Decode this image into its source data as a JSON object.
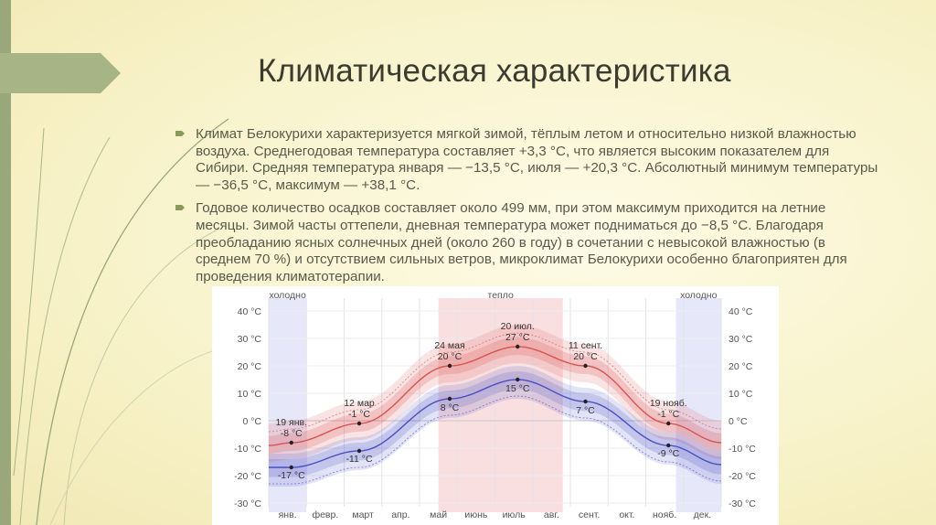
{
  "slide": {
    "title": "Климатическая характеристика",
    "paragraphs": [
      "Климат Белокурихи характеризуется мягкой зимой, тёплым летом и относительно низкой влажностью воздуха. Среднегодовая температура составляет +3,3 °C, что является высоким показателем для Сибири. Средняя температура января — −13,5 °C, июля — +20,3 °C. Абсолютный минимум температуры — −36,5 °C, максимум — +38,1 °C.",
      "Годовое количество осадков составляет около 499 мм, при этом максимум приходится на летние месяцы. Зимой часты оттепели, дневная температура может подниматься до −8,5 °C. Благодаря преобладанию ясных солнечных дней (около 260 в году) в сочетании с невысокой влажностью (в среднем 70 %) и отсутствием сильных ветров, микроклимат Белокурихи особенно благоприятен для проведения климатотерапии."
    ]
  },
  "colors": {
    "high": "#d9534f",
    "low": "#4a4fc4",
    "warm_zone": "#f5c9c9",
    "cold_zone": "#d3d3f5",
    "accent": "#8a9a5b"
  },
  "chart_data": {
    "type": "line",
    "ylim": [
      -30,
      40
    ],
    "yticks": [
      "40 °C",
      "30 °C",
      "20 °C",
      "10 °C",
      "0 °C",
      "-10 °C",
      "-20 °C",
      "-30 °C"
    ],
    "ytick_values": [
      40,
      30,
      20,
      10,
      0,
      -10,
      -20,
      -30
    ],
    "categories": [
      "янв.",
      "февр.",
      "март",
      "апр.",
      "май",
      "июнь",
      "июль",
      "авг.",
      "сент.",
      "окт.",
      "нояб.",
      "дек."
    ],
    "zones": [
      {
        "label": "холодно",
        "from": 0.0,
        "to": 1.0
      },
      {
        "label": "тепло",
        "from": 4.5,
        "to": 7.8
      },
      {
        "label": "холодно",
        "from": 10.8,
        "to": 12.0
      }
    ],
    "series": [
      {
        "name": "high",
        "x": [
          0,
          0.6,
          2.4,
          4.8,
          6.6,
          8.4,
          10.6,
          12
        ],
        "values": [
          -9,
          -8,
          -1,
          20,
          27,
          20,
          -1,
          -8
        ]
      },
      {
        "name": "low",
        "x": [
          0,
          0.6,
          2.4,
          4.8,
          6.6,
          8.4,
          10.6,
          12
        ],
        "values": [
          -17,
          -17,
          -11,
          8,
          15,
          7,
          -9,
          -16
        ]
      }
    ],
    "annotations": [
      {
        "date": "19 янв.",
        "value": "-8 °C",
        "x": 0.6,
        "y": -8
      },
      {
        "date": "",
        "value": "-17 °C",
        "x": 0.6,
        "y": -17
      },
      {
        "date": "12 мар",
        "value": "-1 °C",
        "x": 2.4,
        "y": -1
      },
      {
        "date": "",
        "value": "-11 °C",
        "x": 2.4,
        "y": -11
      },
      {
        "date": "24 мая",
        "value": "20 °C",
        "x": 4.8,
        "y": 20
      },
      {
        "date": "",
        "value": "8 °C",
        "x": 4.8,
        "y": 8
      },
      {
        "date": "20 июл.",
        "value": "27 °C",
        "x": 6.6,
        "y": 27
      },
      {
        "date": "",
        "value": "15 °C",
        "x": 6.6,
        "y": 15
      },
      {
        "date": "11 сент.",
        "value": "20 °C",
        "x": 8.4,
        "y": 20
      },
      {
        "date": "",
        "value": "7 °C",
        "x": 8.4,
        "y": 7
      },
      {
        "date": "19 нояб.",
        "value": "-1 °C",
        "x": 10.6,
        "y": -1
      },
      {
        "date": "",
        "value": "-9 °C",
        "x": 10.6,
        "y": -9
      }
    ]
  }
}
